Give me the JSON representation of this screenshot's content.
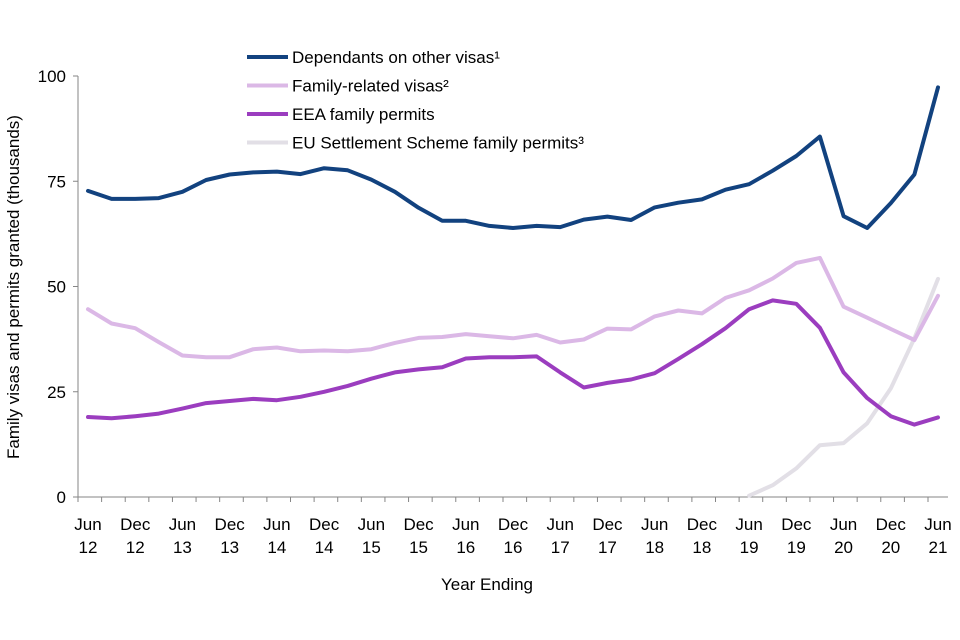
{
  "chart_data": {
    "type": "line",
    "title": "",
    "xlabel": "Year Ending",
    "ylabel": "Family visas and permits granted (thousands)",
    "ylim": [
      0,
      100
    ],
    "yticks": [
      0,
      25,
      50,
      75,
      100
    ],
    "grid": false,
    "legend_position": "top-center",
    "x": [
      "Jun 12",
      "Sep 12",
      "Dec 12",
      "Mar 13",
      "Jun 13",
      "Sep 13",
      "Dec 13",
      "Mar 14",
      "Jun 14",
      "Sep 14",
      "Dec 14",
      "Mar 15",
      "Jun 15",
      "Sep 15",
      "Dec 15",
      "Mar 16",
      "Jun 16",
      "Sep 16",
      "Dec 16",
      "Mar 17",
      "Jun 17",
      "Sep 17",
      "Dec 17",
      "Mar 18",
      "Jun 18",
      "Sep 18",
      "Dec 18",
      "Mar 19",
      "Jun 19",
      "Sep 19",
      "Dec 19",
      "Mar 20",
      "Jun 20",
      "Sep 20",
      "Dec 20",
      "Mar 21",
      "Jun 21"
    ],
    "xtick_labels": [
      {
        "index": 0,
        "month": "Jun",
        "year": "12"
      },
      {
        "index": 2,
        "month": "Dec",
        "year": "12"
      },
      {
        "index": 4,
        "month": "Jun",
        "year": "13"
      },
      {
        "index": 6,
        "month": "Dec",
        "year": "13"
      },
      {
        "index": 8,
        "month": "Jun",
        "year": "14"
      },
      {
        "index": 10,
        "month": "Dec",
        "year": "14"
      },
      {
        "index": 12,
        "month": "Jun",
        "year": "15"
      },
      {
        "index": 14,
        "month": "Dec",
        "year": "15"
      },
      {
        "index": 16,
        "month": "Jun",
        "year": "16"
      },
      {
        "index": 18,
        "month": "Dec",
        "year": "16"
      },
      {
        "index": 20,
        "month": "Jun",
        "year": "17"
      },
      {
        "index": 22,
        "month": "Dec",
        "year": "17"
      },
      {
        "index": 24,
        "month": "Jun",
        "year": "18"
      },
      {
        "index": 26,
        "month": "Dec",
        "year": "18"
      },
      {
        "index": 28,
        "month": "Jun",
        "year": "19"
      },
      {
        "index": 30,
        "month": "Dec",
        "year": "19"
      },
      {
        "index": 32,
        "month": "Jun",
        "year": "20"
      },
      {
        "index": 34,
        "month": "Dec",
        "year": "20"
      },
      {
        "index": 36,
        "month": "Jun",
        "year": "21"
      }
    ],
    "series": [
      {
        "name": "Dependants on other visas¹",
        "color": "#12427f",
        "values": [
          72.7,
          70.8,
          70.8,
          71.0,
          72.5,
          75.3,
          76.6,
          77.1,
          77.3,
          76.7,
          78.1,
          77.6,
          75.4,
          72.5,
          68.7,
          65.6,
          65.6,
          64.4,
          63.9,
          64.4,
          64.1,
          65.9,
          66.6,
          65.8,
          68.8,
          69.9,
          70.7,
          73.0,
          74.3,
          77.5,
          81.0,
          85.6,
          66.7,
          63.9,
          69.8,
          76.6,
          97.3
        ]
      },
      {
        "name": "Family-related visas²",
        "color": "#dbb8e6",
        "values": [
          44.6,
          41.2,
          40.1,
          36.8,
          33.6,
          33.2,
          33.2,
          35.1,
          35.5,
          34.6,
          34.8,
          34.6,
          35.1,
          36.6,
          37.8,
          38.0,
          38.7,
          38.2,
          37.7,
          38.5,
          36.7,
          37.4,
          40.0,
          39.8,
          42.9,
          44.3,
          43.6,
          47.3,
          49.1,
          51.9,
          55.6,
          56.8,
          45.2,
          42.6,
          39.9,
          37.3,
          47.8
        ]
      },
      {
        "name": "EEA family permits",
        "color": "#9b3dbf",
        "values": [
          19.0,
          18.7,
          19.2,
          19.8,
          21.0,
          22.3,
          22.8,
          23.3,
          23.0,
          23.8,
          25.0,
          26.4,
          28.1,
          29.6,
          30.3,
          30.8,
          32.9,
          33.2,
          33.2,
          33.4,
          29.6,
          26.0,
          27.1,
          27.9,
          29.4,
          32.8,
          36.3,
          40.1,
          44.6,
          46.7,
          45.9,
          40.2,
          29.6,
          23.5,
          19.2,
          17.2,
          18.9
        ]
      },
      {
        "name": "EU Settlement Scheme family permits³",
        "color": "#e2dfe6",
        "values": [
          null,
          null,
          null,
          null,
          null,
          null,
          null,
          null,
          null,
          null,
          null,
          null,
          null,
          null,
          null,
          null,
          null,
          null,
          null,
          null,
          null,
          null,
          null,
          null,
          null,
          null,
          null,
          null,
          0.3,
          2.8,
          6.8,
          12.3,
          12.8,
          17.5,
          25.8,
          37.7,
          51.8
        ]
      }
    ]
  }
}
